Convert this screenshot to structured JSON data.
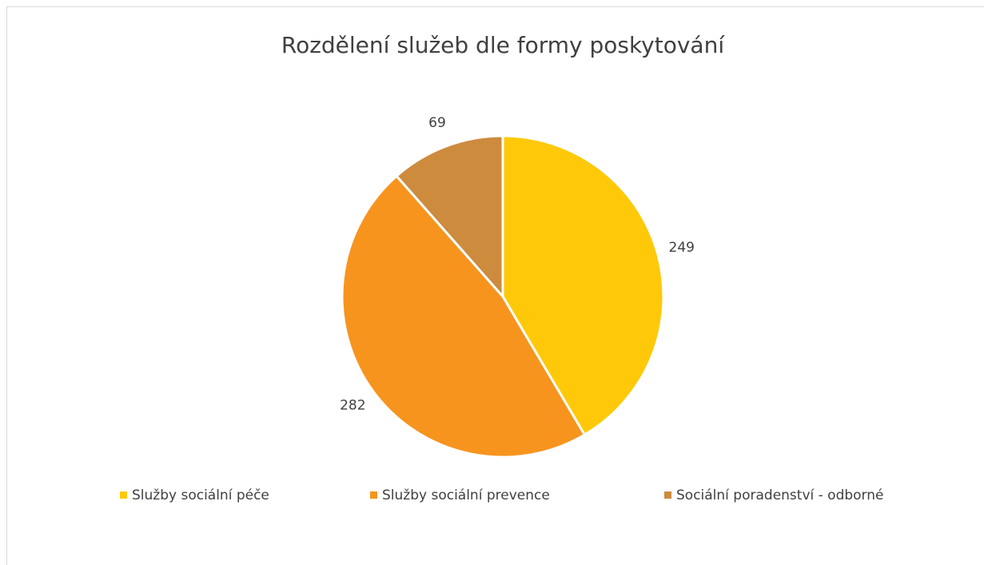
{
  "chart_data": {
    "type": "pie",
    "title": "Rozdělení služeb dle formy poskytování",
    "categories": [
      "Služby sociální péče",
      "Služby sociální prevence",
      "Sociální poradenství - odborné"
    ],
    "values": [
      249,
      282,
      69
    ],
    "colors": [
      "#FFC90A",
      "#F7941E",
      "#CD8B3E"
    ],
    "legend": "bottom"
  }
}
